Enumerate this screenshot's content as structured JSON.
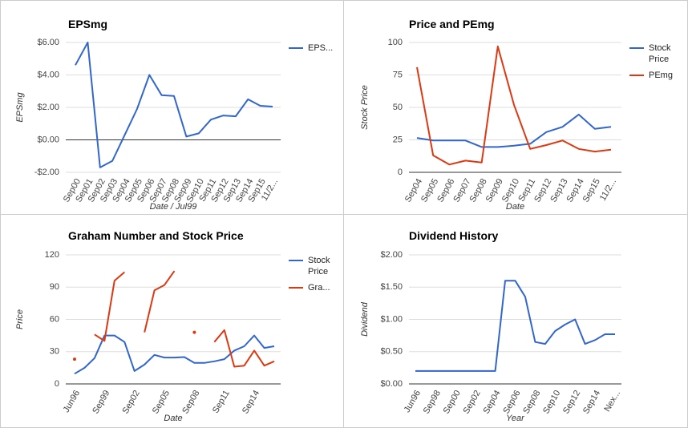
{
  "chart_data": [
    {
      "type": "line",
      "title": "EPSmg",
      "x_label": "Date / Jul99",
      "y_label": "EPSmg",
      "categories": [
        "Sep00",
        "Sep01",
        "Sep02",
        "Sep03",
        "Sep04",
        "Sep05",
        "Sep06",
        "Sep07",
        "Sep08",
        "Sep09",
        "Sep10",
        "Sep11",
        "Sep12",
        "Sep13",
        "Sep14",
        "Sep15",
        "11/2..."
      ],
      "series": [
        {
          "name": "EPS...",
          "color": "#3366cc",
          "values": [
            4.6,
            6.0,
            -1.7,
            -1.3,
            0.3,
            1.9,
            4.0,
            2.75,
            2.7,
            0.2,
            0.4,
            1.25,
            1.5,
            1.45,
            2.5,
            2.1,
            2.05
          ]
        }
      ],
      "ylim": [
        -2,
        6
      ],
      "yticks": [
        {
          "value": -2,
          "label": "-$2.00"
        },
        {
          "value": 0,
          "label": "$0.00"
        },
        {
          "value": 2,
          "label": "$2.00"
        },
        {
          "value": 4,
          "label": "$4.00"
        },
        {
          "value": 6,
          "label": "$6.00"
        }
      ],
      "grid": true,
      "legend": "right"
    },
    {
      "type": "line",
      "title": "Price and PEmg",
      "x_label": "Date",
      "y_label": "Stock Price",
      "categories": [
        "Sep04",
        "Sep05",
        "Sep06",
        "Sep07",
        "Sep08",
        "Sep09",
        "Sep10",
        "Sep11",
        "Sep12",
        "Sep13",
        "Sep14",
        "Sep15",
        "11/2..."
      ],
      "series": [
        {
          "name": "Stock Price",
          "color": "#3366cc",
          "values": [
            26.5,
            24.5,
            24.5,
            24.5,
            19.5,
            19.5,
            20.5,
            22,
            31,
            35,
            44.5,
            33.5,
            35
          ]
        },
        {
          "name": "PEmg",
          "color": "#dc3912",
          "values": [
            81,
            13,
            6,
            9,
            7.5,
            97,
            52,
            18,
            21,
            24.5,
            18,
            16,
            17.5
          ]
        }
      ],
      "ylim": [
        0,
        100
      ],
      "yticks": [
        0,
        25,
        50,
        75,
        100
      ],
      "grid": true,
      "legend": "right"
    },
    {
      "type": "line",
      "title": "Graham Number and Stock Price",
      "x_label": "Date",
      "y_label": "Price",
      "categories": [
        "Jun96",
        null,
        null,
        "Sep99",
        null,
        null,
        "Sep02",
        null,
        null,
        "Sep05",
        null,
        null,
        "Sep08",
        null,
        null,
        "Sep11",
        null,
        null,
        "Sep14",
        null,
        null
      ],
      "series": [
        {
          "name": "Stock Price",
          "color": "#3366cc",
          "values": [
            9.5,
            15,
            24,
            45,
            45,
            39,
            12,
            18,
            27,
            24.5,
            24.5,
            25,
            19.5,
            19.5,
            21,
            23,
            31,
            35,
            45,
            33.5,
            35
          ]
        },
        {
          "name": "Gra...",
          "color": "#dc3912",
          "values": [
            23,
            null,
            46,
            40,
            96,
            104,
            null,
            48,
            87,
            92,
            105,
            null,
            48,
            null,
            39,
            50,
            16,
            17,
            31,
            17,
            21
          ]
        }
      ],
      "ylim": [
        0,
        120
      ],
      "yticks": [
        0,
        30,
        60,
        90,
        120
      ],
      "grid": true,
      "legend": "right"
    },
    {
      "type": "line",
      "title": "Dividend History",
      "x_label": "Year",
      "y_label": "Dividend",
      "categories": [
        "Jun96",
        null,
        "Sep98",
        null,
        "Sep00",
        null,
        "Sep02",
        null,
        "Sep04",
        null,
        "Sep06",
        null,
        "Sep08",
        null,
        "Sep10",
        null,
        "Sep12",
        null,
        "Sep14",
        null,
        "Nex..."
      ],
      "series": [
        {
          "color": "#3366cc",
          "values": [
            0.2,
            0.2,
            0.2,
            0.2,
            0.2,
            0.2,
            0.2,
            0.2,
            0.2,
            1.6,
            1.6,
            1.35,
            0.65,
            0.62,
            0.82,
            0.92,
            1.0,
            0.62,
            0.68,
            0.77,
            0.77
          ]
        }
      ],
      "ylim": [
        0,
        2
      ],
      "yticks": [
        {
          "value": 0,
          "label": "$0.00"
        },
        {
          "value": 0.5,
          "label": "$0.50"
        },
        {
          "value": 1,
          "label": "$1.00"
        },
        {
          "value": 1.5,
          "label": "$1.50"
        },
        {
          "value": 2,
          "label": "$2.00"
        }
      ],
      "grid": true
    }
  ]
}
